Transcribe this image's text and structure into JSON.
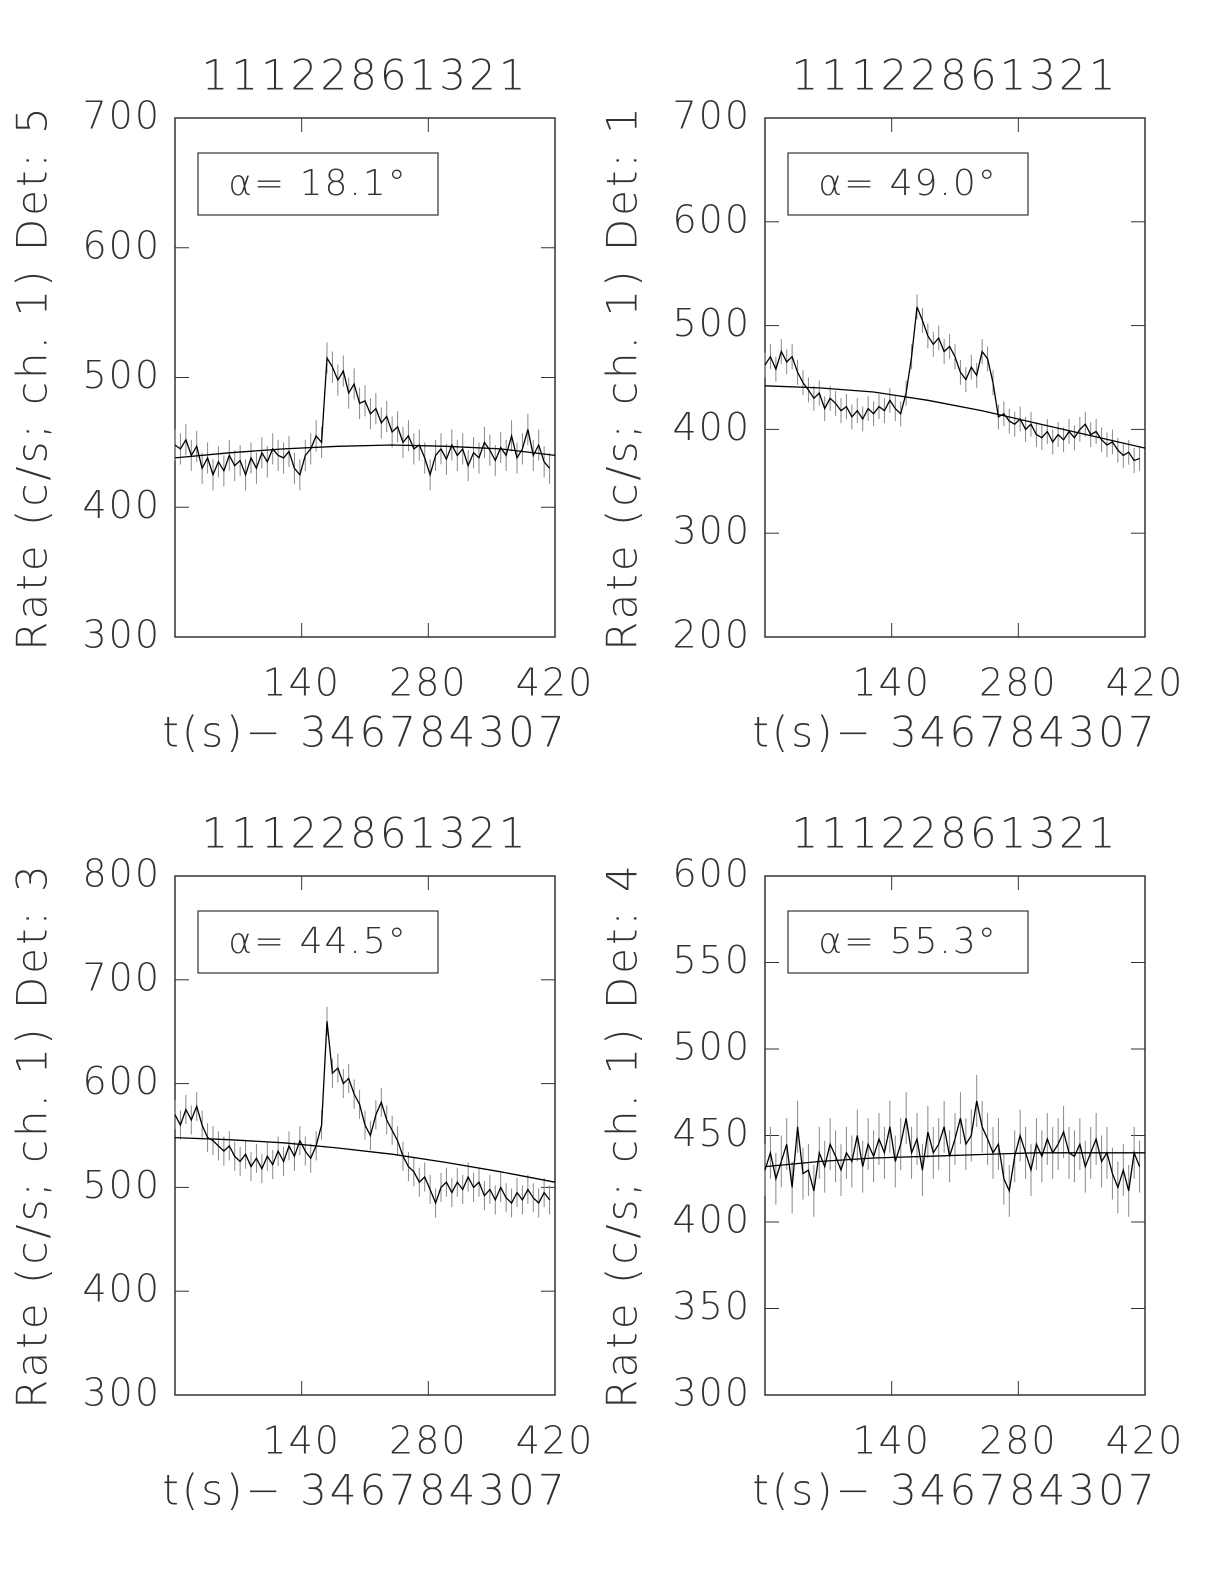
{
  "chart_data": [
    {
      "type": "line",
      "title": "11122861321",
      "xlabel": "t(s)− 346784307",
      "ylabel": "Rate (c/s; ch. 1) Det: 5",
      "annotation": "α= 18.1°",
      "xlim": [
        0,
        420
      ],
      "xticks": [
        140,
        280,
        420
      ],
      "ylim": [
        300,
        700
      ],
      "yticks": [
        300,
        400,
        500,
        600,
        700
      ],
      "series": [
        {
          "color": "#000000",
          "error": 12,
          "x": [
            0,
            6,
            12,
            18,
            24,
            30,
            36,
            42,
            48,
            54,
            60,
            66,
            72,
            78,
            84,
            90,
            96,
            102,
            108,
            114,
            120,
            126,
            132,
            138,
            144,
            150,
            156,
            162,
            168,
            174,
            180,
            186,
            192,
            198,
            204,
            210,
            216,
            222,
            228,
            234,
            240,
            246,
            252,
            258,
            264,
            270,
            276,
            282,
            288,
            294,
            300,
            306,
            312,
            318,
            324,
            330,
            336,
            342,
            348,
            354,
            360,
            366,
            372,
            378,
            384,
            390,
            396,
            402,
            408,
            414
          ],
          "values": [
            448,
            445,
            452,
            440,
            447,
            430,
            438,
            425,
            435,
            428,
            440,
            432,
            436,
            425,
            438,
            430,
            442,
            435,
            445,
            440,
            438,
            443,
            430,
            425,
            440,
            445,
            455,
            450,
            515,
            508,
            498,
            505,
            488,
            495,
            480,
            482,
            472,
            476,
            465,
            470,
            458,
            462,
            450,
            455,
            445,
            448,
            438,
            425,
            440,
            445,
            437,
            448,
            440,
            445,
            432,
            442,
            438,
            450,
            444,
            436,
            446,
            440,
            455,
            438,
            445,
            460,
            440,
            448,
            435,
            430
          ]
        },
        {
          "color": "#000000",
          "x": [
            0,
            60,
            120,
            180,
            240,
            300,
            360,
            420
          ],
          "values": [
            438,
            442,
            445,
            447,
            448,
            447,
            445,
            440
          ]
        }
      ]
    },
    {
      "type": "line",
      "title": "11122861321",
      "xlabel": "t(s)− 346784307",
      "ylabel": "Rate (c/s; ch. 1) Det: 1",
      "annotation": "α= 49.0°",
      "xlim": [
        0,
        420
      ],
      "xticks": [
        140,
        280,
        420
      ],
      "ylim": [
        200,
        700
      ],
      "yticks": [
        200,
        300,
        400,
        500,
        600,
        700
      ],
      "series": [
        {
          "color": "#000000",
          "error": 12,
          "x": [
            0,
            6,
            12,
            18,
            24,
            30,
            36,
            42,
            48,
            54,
            60,
            66,
            72,
            78,
            84,
            90,
            96,
            102,
            108,
            114,
            120,
            126,
            132,
            138,
            144,
            150,
            156,
            162,
            168,
            174,
            180,
            186,
            192,
            198,
            204,
            210,
            216,
            222,
            228,
            234,
            240,
            246,
            252,
            258,
            264,
            270,
            276,
            282,
            288,
            294,
            300,
            306,
            312,
            318,
            324,
            330,
            336,
            342,
            348,
            354,
            360,
            366,
            372,
            378,
            384,
            390,
            396,
            402,
            408,
            414
          ],
          "values": [
            462,
            470,
            458,
            475,
            465,
            470,
            455,
            445,
            438,
            430,
            435,
            420,
            430,
            425,
            418,
            422,
            412,
            418,
            410,
            420,
            415,
            422,
            418,
            428,
            420,
            415,
            435,
            470,
            518,
            505,
            490,
            482,
            488,
            475,
            480,
            470,
            455,
            448,
            460,
            452,
            475,
            468,
            445,
            412,
            415,
            408,
            405,
            410,
            400,
            405,
            395,
            392,
            398,
            388,
            395,
            390,
            398,
            392,
            400,
            405,
            395,
            398,
            390,
            385,
            388,
            380,
            375,
            378,
            370,
            372
          ]
        },
        {
          "color": "#000000",
          "x": [
            0,
            60,
            120,
            180,
            240,
            300,
            360,
            420
          ],
          "values": [
            442,
            440,
            436,
            428,
            418,
            406,
            394,
            382
          ]
        }
      ]
    },
    {
      "type": "line",
      "title": "11122861321",
      "xlabel": "t(s)− 346784307",
      "ylabel": "Rate (c/s; ch. 1) Det: 3",
      "annotation": "α= 44.5°",
      "xlim": [
        0,
        420
      ],
      "xticks": [
        140,
        280,
        420
      ],
      "ylim": [
        300,
        800
      ],
      "yticks": [
        300,
        400,
        500,
        600,
        700,
        800
      ],
      "series": [
        {
          "color": "#000000",
          "error": 14,
          "x": [
            0,
            6,
            12,
            18,
            24,
            30,
            36,
            42,
            48,
            54,
            60,
            66,
            72,
            78,
            84,
            90,
            96,
            102,
            108,
            114,
            120,
            126,
            132,
            138,
            144,
            150,
            156,
            162,
            168,
            174,
            180,
            186,
            192,
            198,
            204,
            210,
            216,
            222,
            228,
            234,
            240,
            246,
            252,
            258,
            264,
            270,
            276,
            282,
            288,
            294,
            300,
            306,
            312,
            318,
            324,
            330,
            336,
            342,
            348,
            354,
            360,
            366,
            372,
            378,
            384,
            390,
            396,
            402,
            408,
            414
          ],
          "values": [
            570,
            560,
            575,
            565,
            578,
            560,
            548,
            545,
            540,
            535,
            540,
            530,
            525,
            532,
            520,
            528,
            518,
            530,
            522,
            535,
            525,
            540,
            530,
            545,
            535,
            528,
            540,
            560,
            660,
            610,
            615,
            600,
            605,
            590,
            580,
            560,
            550,
            570,
            582,
            565,
            555,
            545,
            530,
            520,
            515,
            505,
            510,
            498,
            485,
            500,
            505,
            495,
            505,
            498,
            510,
            500,
            505,
            492,
            498,
            488,
            500,
            490,
            485,
            495,
            488,
            498,
            490,
            485,
            495,
            488
          ]
        },
        {
          "color": "#000000",
          "x": [
            0,
            60,
            120,
            180,
            240,
            300,
            360,
            420
          ],
          "values": [
            548,
            546,
            543,
            538,
            532,
            524,
            515,
            505
          ]
        }
      ]
    },
    {
      "type": "line",
      "title": "11122861321",
      "xlabel": "t(s)− 346784307",
      "ylabel": "Rate (c/s; ch. 1) Det: 4",
      "annotation": "α= 55.3°",
      "xlim": [
        0,
        420
      ],
      "xticks": [
        140,
        280,
        420
      ],
      "ylim": [
        300,
        600
      ],
      "yticks": [
        300,
        350,
        400,
        450,
        500,
        550,
        600
      ],
      "series": [
        {
          "color": "#000000",
          "error": 15,
          "x": [
            0,
            6,
            12,
            18,
            24,
            30,
            36,
            42,
            48,
            54,
            60,
            66,
            72,
            78,
            84,
            90,
            96,
            102,
            108,
            114,
            120,
            126,
            132,
            138,
            144,
            150,
            156,
            162,
            168,
            174,
            180,
            186,
            192,
            198,
            204,
            210,
            216,
            222,
            228,
            234,
            240,
            246,
            252,
            258,
            264,
            270,
            276,
            282,
            288,
            294,
            300,
            306,
            312,
            318,
            324,
            330,
            336,
            342,
            348,
            354,
            360,
            366,
            372,
            378,
            384,
            390,
            396,
            402,
            408,
            414
          ],
          "values": [
            430,
            440,
            425,
            435,
            445,
            420,
            455,
            428,
            430,
            418,
            440,
            432,
            445,
            438,
            430,
            440,
            435,
            450,
            432,
            445,
            438,
            448,
            440,
            455,
            435,
            445,
            460,
            440,
            448,
            430,
            452,
            440,
            445,
            455,
            438,
            448,
            460,
            445,
            450,
            470,
            455,
            448,
            440,
            445,
            425,
            418,
            438,
            450,
            440,
            430,
            445,
            438,
            448,
            440,
            445,
            452,
            440,
            438,
            445,
            432,
            440,
            448,
            435,
            440,
            428,
            420,
            430,
            418,
            440,
            432
          ]
        },
        {
          "color": "#000000",
          "x": [
            0,
            60,
            120,
            180,
            240,
            300,
            360,
            420
          ],
          "values": [
            432,
            435,
            437,
            438,
            439,
            440,
            440,
            440
          ]
        }
      ]
    }
  ]
}
